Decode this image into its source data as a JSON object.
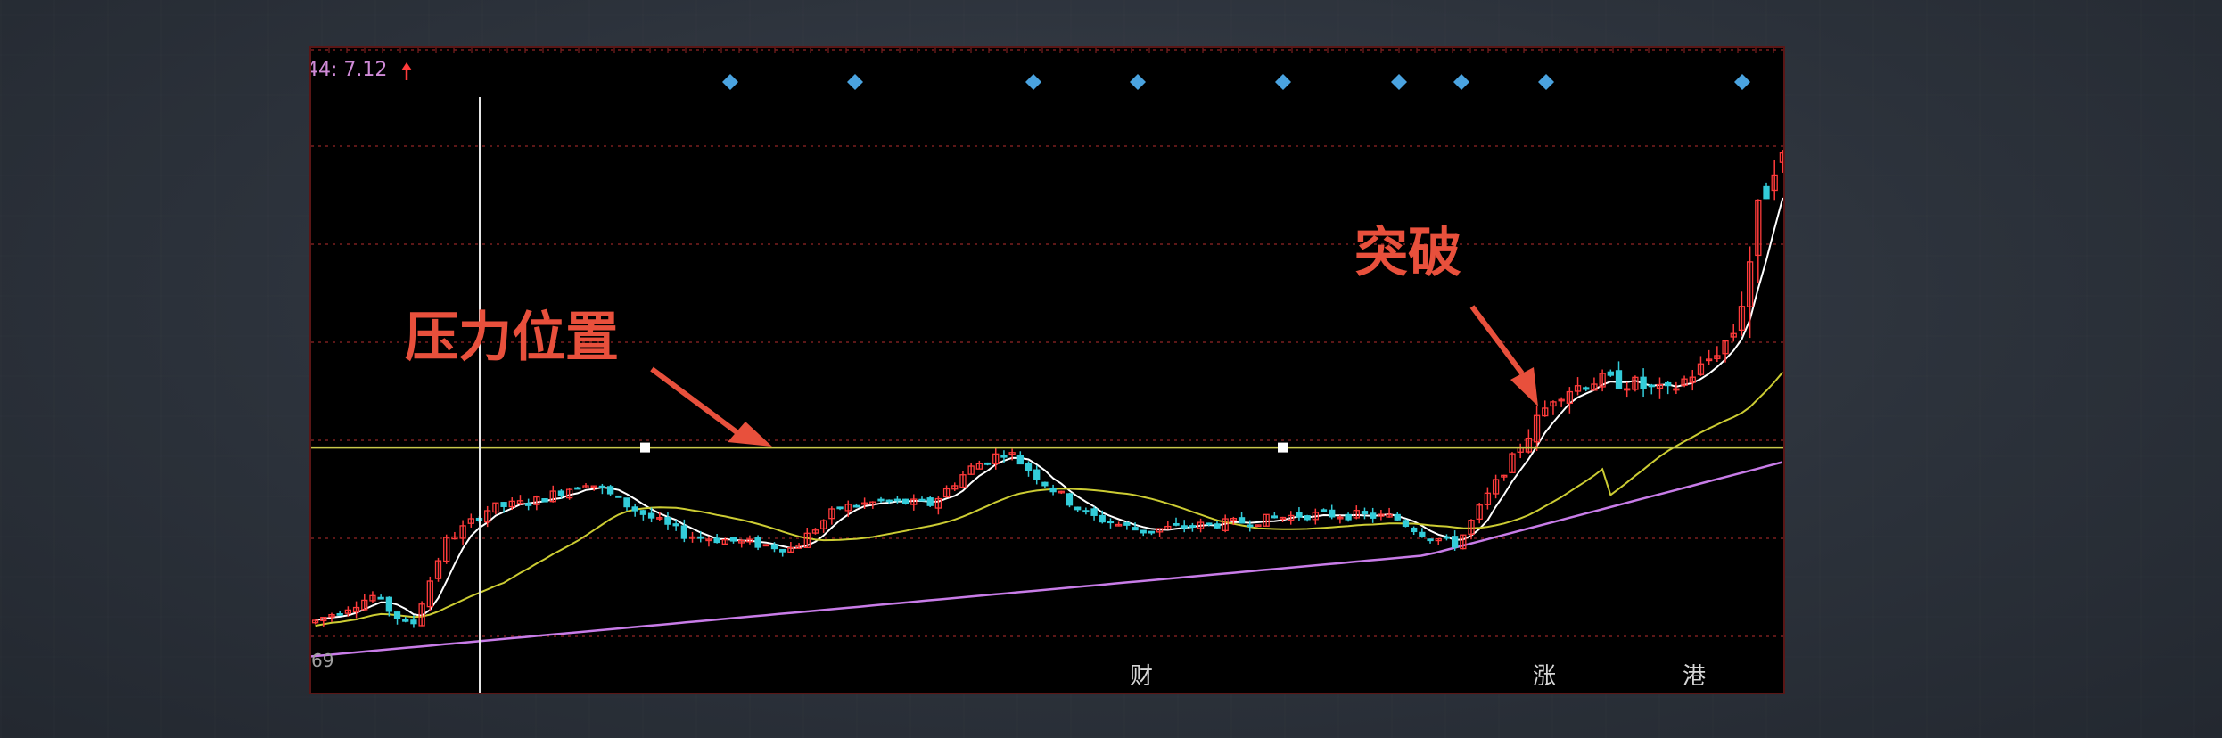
{
  "chart_data": {
    "type": "candlestick",
    "indicator_readout": "44: 7.12",
    "indicator_arrow": "up-arrow-icon",
    "left_axis_label": "69",
    "resistance_label": "压力位置",
    "breakout_label": "突破",
    "bottom_markers": [
      "财",
      "涨",
      "港"
    ],
    "resistance_level": 5.0,
    "ylim": [
      3.4,
      7.6
    ],
    "colors": {
      "up": "#ff3b3b",
      "down": "#33ccd9",
      "ma_short": "#ffffff",
      "ma_mid": "#cccc33",
      "ma_long": "#c87ce8",
      "resistance": "#c8c84a",
      "signal": "#4aa3e0",
      "annotation": "#e8503c",
      "grid": "#7a1f1f"
    }
  }
}
